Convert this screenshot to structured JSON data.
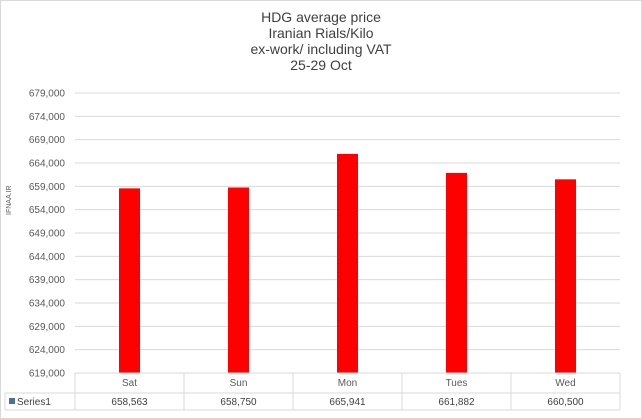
{
  "chart_data": {
    "type": "bar",
    "title": "HDG average price",
    "title_lines": [
      "HDG average price",
      "Iranian Rials/Kilo",
      "ex-work/ including VAT",
      "25-29 Oct"
    ],
    "watermark": "IFNAA.IR",
    "categories": [
      "Sat",
      "Sun",
      "Mon",
      "Tues",
      "Wed"
    ],
    "series": [
      {
        "name": "Series1",
        "values": [
          658563,
          658750,
          665941,
          661882,
          660500
        ]
      }
    ],
    "data_table": [
      "658,563",
      "658,750",
      "665,941",
      "661,882",
      "660,500"
    ],
    "y_ticks": [
      "619,000",
      "624,000",
      "629,000",
      "634,000",
      "639,000",
      "644,000",
      "649,000",
      "654,000",
      "659,000",
      "664,000",
      "669,000",
      "674,000",
      "679,000"
    ],
    "ylim": [
      619000,
      679000
    ],
    "y_step": 5000,
    "grid": true,
    "legend": "data-table",
    "bar_color": "#ff0000",
    "series_key_color": "#4a6fa5"
  }
}
